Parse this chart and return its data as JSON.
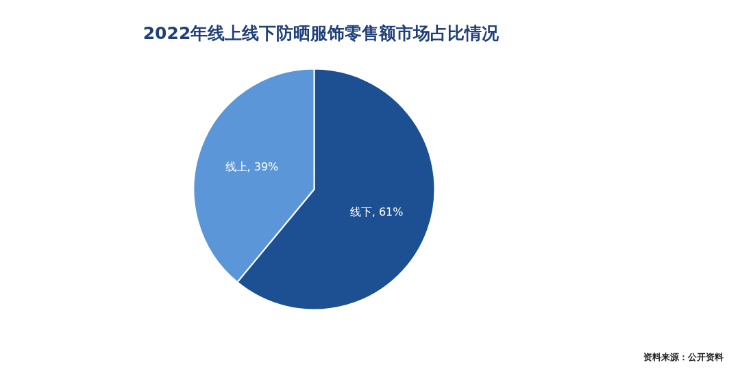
{
  "chart_data": {
    "type": "pie",
    "title": "2022年线上线下防晒服饰零售额市场占比情况",
    "categories": [
      "线下",
      "线上"
    ],
    "values": [
      61,
      39
    ],
    "colors": [
      "#1c5093",
      "#5b97d8"
    ],
    "value_labels": [
      "61%",
      "39%"
    ],
    "annotations": [
      "资料来源：公开资料"
    ]
  }
}
